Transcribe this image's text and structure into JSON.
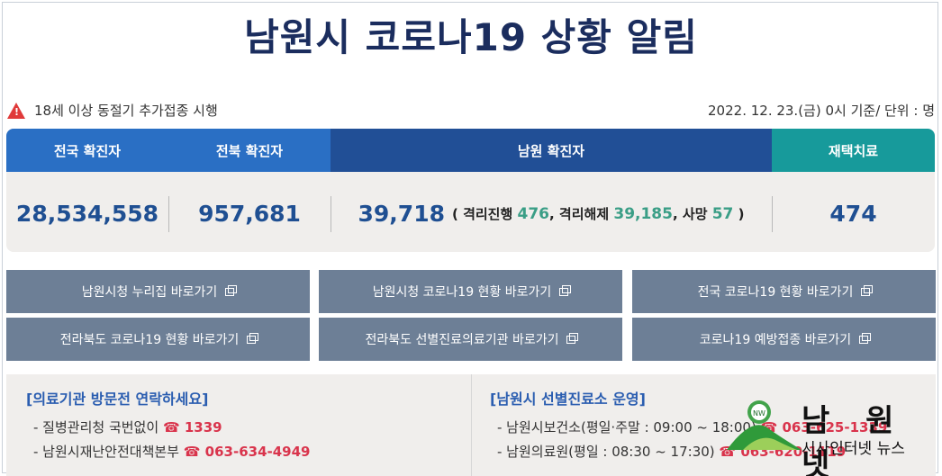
{
  "title": "남원시 코로나19 상황 알림",
  "notice": {
    "text": "18세 이상 동절기 추가접종 시행",
    "date": "2022. 12. 23.(금) 0시 기준/ 단위 : 명"
  },
  "stats": {
    "national_label": "전국 확진자",
    "national_value": "28,534,558",
    "jeonbuk_label": "전북 확진자",
    "jeonbuk_value": "957,681",
    "namwon_label": "남원 확진자",
    "namwon_value": "39,718",
    "namwon_detail": {
      "open": "( 격리진행 ",
      "in_isolation": "476",
      "released_label": ", 격리해제 ",
      "released": "39,185",
      "death_label": ", 사망 ",
      "deaths": "57",
      "close": " )"
    },
    "home_label": "재택치료",
    "home_value": "474"
  },
  "links": [
    "남원시청 누리집 바로가기",
    "남원시청 코로나19 현황 바로가기",
    "전국 코로나19 현황 바로가기",
    "전라북도 코로나19 현황 바로가기",
    "전라북도 선별진료의료기관 바로가기",
    "코로나19 예방접종 바로가기"
  ],
  "contact_left": {
    "title": "[의료기관 방문전 연락하세요]",
    "line1_label": "- 질병관리청 국번없이",
    "line1_tel": "☎ 1339",
    "line2_label": "- 남원시재난안전대책본부",
    "line2_tel": "☎ 063-634-4949"
  },
  "contact_right": {
    "title": "[남원시 선별진료소 운영]",
    "line1_label": "- 남원시보건소(평일·주말 : 09:00 ~ 18:00)",
    "line1_tel": "☎ 063-625-1339",
    "line2_label": "- 남원의료원(평일 : 08:30 ~ 17:30)",
    "line2_tel": "☎ 063-620-1119"
  },
  "logo": {
    "name": "남 원 넷",
    "sub": "시사인터넷 뉴스",
    "badge": "NW"
  },
  "colors": {
    "title": "#1b2d5e",
    "header_blue": "#2a6fc4",
    "header_navy": "#214f96",
    "header_teal": "#179a9b",
    "value_blue": "#1f4f92",
    "accent_green": "#3a9e86",
    "link_button": "#6d7f96",
    "tel_red": "#d9344c"
  }
}
